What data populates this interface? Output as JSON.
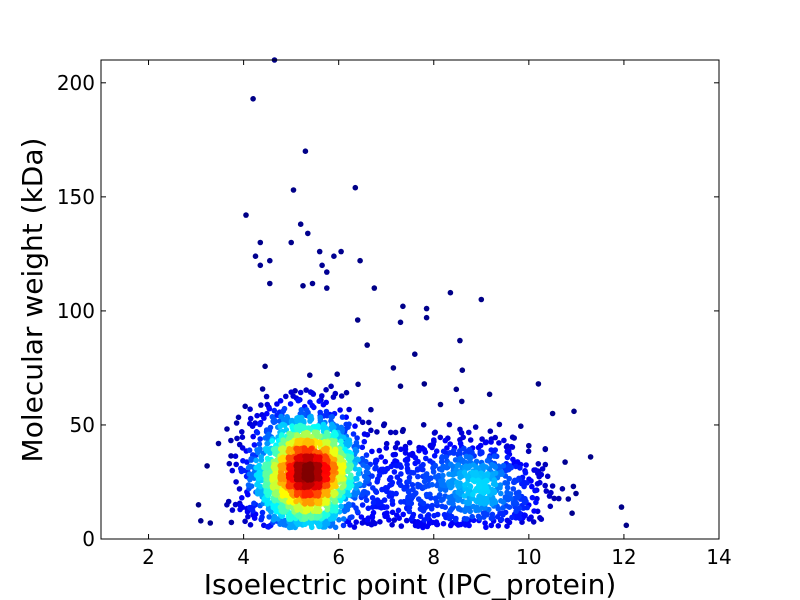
{
  "chart_data": {
    "type": "scatter",
    "title": "",
    "xlabel": "Isoelectric point (IPC_protein)",
    "ylabel": "Molecular weight (kDa)",
    "xlim": [
      1,
      14
    ],
    "ylim": [
      0,
      210
    ],
    "x_ticks": [
      2,
      4,
      6,
      8,
      10,
      12,
      14
    ],
    "y_ticks": [
      0,
      50,
      100,
      150,
      200
    ],
    "x_tick_labels": [
      "2",
      "4",
      "6",
      "8",
      "10",
      "12",
      "14"
    ],
    "y_tick_labels": [
      "0",
      "50",
      "100",
      "150",
      "200"
    ],
    "grid": false,
    "legend": "none",
    "color_scale": "density (jet: blue low to red high)",
    "colormap": [
      "#00007f",
      "#0000ff",
      "#007fff",
      "#00ffff",
      "#7fff7f",
      "#ffff00",
      "#ff7f00",
      "#ff0000",
      "#7f0000"
    ],
    "clusters": [
      {
        "center": [
          5.3,
          30
        ],
        "spread": [
          0.55,
          13
        ],
        "count": 2200
      },
      {
        "center": [
          8.9,
          24
        ],
        "spread": [
          0.75,
          11
        ],
        "count": 650
      },
      {
        "center": [
          7.2,
          22
        ],
        "spread": [
          0.6,
          11
        ],
        "count": 200
      }
    ],
    "outliers": [
      [
        4.65,
        210
      ],
      [
        4.2,
        193
      ],
      [
        5.3,
        170
      ],
      [
        5.05,
        153
      ],
      [
        6.35,
        154
      ],
      [
        4.05,
        142
      ],
      [
        5.2,
        138
      ],
      [
        4.35,
        130
      ],
      [
        5.0,
        130
      ],
      [
        5.35,
        134
      ],
      [
        4.25,
        124
      ],
      [
        6.05,
        126
      ],
      [
        5.6,
        126
      ],
      [
        5.9,
        124
      ],
      [
        6.45,
        122
      ],
      [
        4.35,
        120
      ],
      [
        4.55,
        122
      ],
      [
        5.65,
        120
      ],
      [
        5.75,
        117
      ],
      [
        4.55,
        112
      ],
      [
        6.75,
        110
      ],
      [
        5.25,
        111
      ],
      [
        5.45,
        112
      ],
      [
        5.75,
        110
      ],
      [
        8.35,
        108
      ],
      [
        9.0,
        105
      ],
      [
        7.35,
        102
      ],
      [
        7.85,
        101
      ],
      [
        7.3,
        95
      ],
      [
        7.85,
        97
      ],
      [
        6.4,
        96
      ],
      [
        8.55,
        87
      ],
      [
        6.6,
        85
      ],
      [
        7.6,
        81
      ],
      [
        7.15,
        75
      ],
      [
        10.2,
        68
      ],
      [
        7.3,
        67
      ],
      [
        7.8,
        68
      ],
      [
        8.6,
        74
      ],
      [
        10.5,
        55
      ],
      [
        10.95,
        56
      ],
      [
        11.3,
        36
      ],
      [
        12.05,
        6
      ],
      [
        11.95,
        14
      ],
      [
        3.1,
        8
      ],
      [
        3.3,
        7
      ],
      [
        3.05,
        15
      ]
    ]
  }
}
